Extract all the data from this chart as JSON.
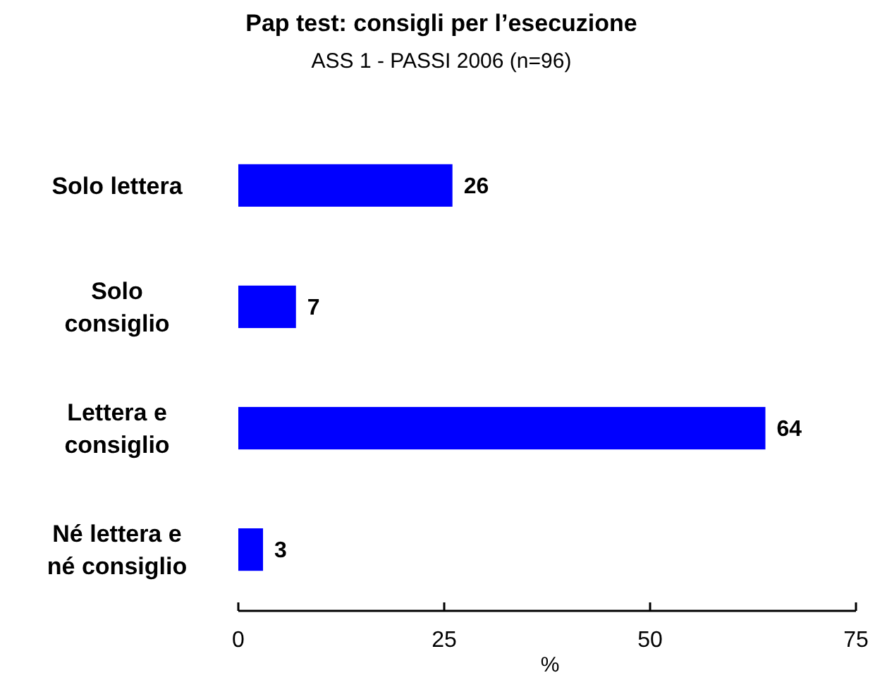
{
  "chart_data": {
    "type": "bar",
    "orientation": "horizontal",
    "title": "Pap test: consigli per l’esecuzione",
    "subtitle": "ASS 1 - PASSI 2006 (n=96)",
    "xlabel": "%",
    "categories": [
      "Solo lettera",
      "Solo\nconsiglio",
      "Lettera e\nconsiglio",
      "Né lettera e\nné consiglio"
    ],
    "values": [
      26,
      7,
      64,
      3
    ],
    "color": "#0000ff",
    "xlim": [
      0,
      75
    ],
    "xticks": [
      0,
      25,
      50,
      75
    ],
    "data_labels": true,
    "grid": false
  }
}
